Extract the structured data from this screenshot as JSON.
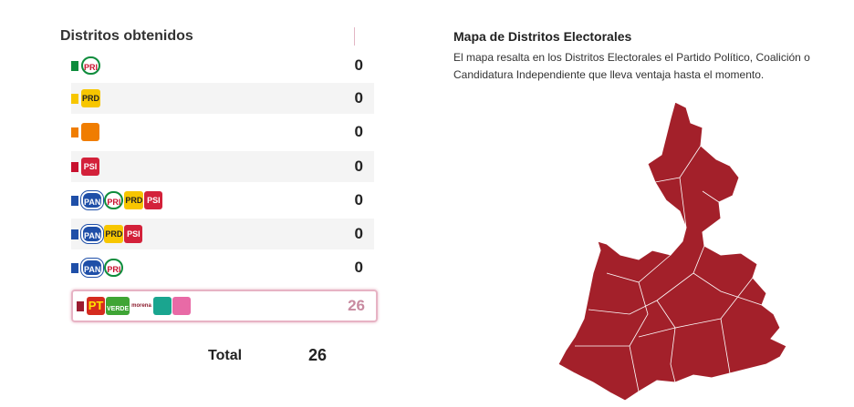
{
  "header": {
    "title": "Distritos obtenidos"
  },
  "rows": [
    {
      "logos": [
        "PRI"
      ],
      "count": 0
    },
    {
      "logos": [
        "PRD"
      ],
      "count": 0
    },
    {
      "logos": [],
      "count": 0
    },
    {
      "logos": [
        "PSI"
      ],
      "count": 0
    },
    {
      "logos": [
        "PAN",
        "PRI",
        "PRD",
        "PSI"
      ],
      "count": 0
    },
    {
      "logos": [
        "PAN",
        "PRD",
        "PSI"
      ],
      "count": 0
    },
    {
      "logos": [
        "PAN",
        "PRI"
      ],
      "count": 0
    },
    {
      "logos": [
        "PT",
        "VERDE",
        "morena"
      ],
      "count": 26
    }
  ],
  "total": {
    "label": "Total",
    "value": 26
  },
  "map": {
    "title": "Mapa de Distritos Electorales",
    "description": "El mapa resalta en los Distritos Electorales el Partido Político, Coalición o Candidatura Independiente que lleva ventaja hasta el momento."
  }
}
